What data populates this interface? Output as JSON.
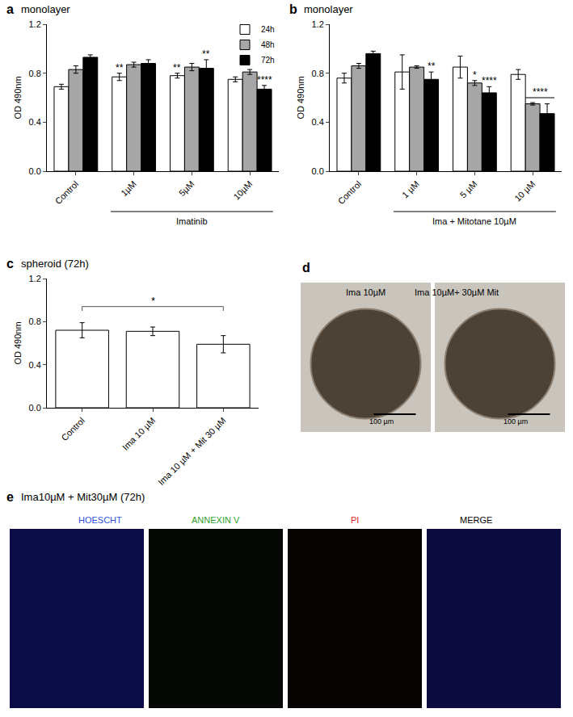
{
  "chart_data": [
    {
      "panel": "a",
      "type": "bar",
      "title": "monolayer",
      "categories": [
        "Control",
        "1µM",
        "5µM",
        "10µM"
      ],
      "group": {
        "label": "Imatinib",
        "categories": [
          "1µM",
          "5µM",
          "10µM"
        ]
      },
      "y_label": "OD 490nm",
      "ylim": [
        0,
        1.2
      ],
      "yticks": [
        {
          "value": 0,
          "label": "0.0"
        },
        0.4,
        0.8,
        1.2
      ],
      "series": [
        {
          "name": "24h",
          "color": "#ffffff",
          "values": [
            0.69,
            0.77,
            0.78,
            0.75
          ],
          "errors": [
            0.02,
            0.03,
            0.02,
            0.02
          ]
        },
        {
          "name": "48h",
          "color": "#a6a6a6",
          "values": [
            0.83,
            0.87,
            0.85,
            0.81
          ],
          "errors": [
            0.03,
            0.02,
            0.03,
            0.02
          ]
        },
        {
          "name": "72h",
          "color": "#000000",
          "values": [
            0.93,
            0.88,
            0.84,
            0.67
          ],
          "errors": [
            0.02,
            0.03,
            0.07,
            0.03
          ]
        }
      ],
      "significance": [
        {
          "category": "1µM",
          "series": [
            "24h"
          ],
          "text": "**"
        },
        {
          "category": "5µM",
          "series": [
            "24h"
          ],
          "text": "**"
        },
        {
          "category": "5µM",
          "series": [
            "72h"
          ],
          "text": "**"
        },
        {
          "category": "10µM",
          "series": [
            "72h"
          ],
          "text": "****"
        }
      ],
      "legend": "top right",
      "grid": false
    },
    {
      "panel": "b",
      "type": "bar",
      "title": "monolayer",
      "categories": [
        "Control",
        "1 µM",
        "5 µM",
        "10 µM"
      ],
      "group": {
        "label": "Ima + Mitotane 10µM",
        "categories": [
          "1 µM",
          "5 µM",
          "10 µM"
        ]
      },
      "y_label": "OD 490nm",
      "ylim": [
        0,
        1.2
      ],
      "yticks": [
        {
          "value": 0,
          "label": "0.0"
        },
        0.4,
        0.8,
        1.2
      ],
      "series": [
        {
          "name": "24h",
          "color": "#ffffff",
          "values": [
            0.76,
            0.81,
            0.85,
            0.79
          ],
          "errors": [
            0.04,
            0.14,
            0.09,
            0.04
          ]
        },
        {
          "name": "48h",
          "color": "#a6a6a6",
          "values": [
            0.86,
            0.85,
            0.72,
            0.55
          ],
          "errors": [
            0.02,
            0.01,
            0.02,
            0.01
          ]
        },
        {
          "name": "72h",
          "color": "#000000",
          "values": [
            0.96,
            0.75,
            0.64,
            0.47
          ],
          "errors": [
            0.02,
            0.06,
            0.05,
            0.08
          ]
        }
      ],
      "significance": [
        {
          "category": "1 µM",
          "series": [
            "72h"
          ],
          "text": "**"
        },
        {
          "category": "5 µM",
          "series": [
            "48h"
          ],
          "text": "*"
        },
        {
          "category": "5 µM",
          "series": [
            "72h"
          ],
          "text": "****"
        },
        {
          "category": "10 µM",
          "series": [
            "48h",
            "72h"
          ],
          "text": "****"
        }
      ],
      "grid": false
    },
    {
      "panel": "c",
      "type": "bar",
      "title": "spheroid (72h)",
      "categories": [
        "Control",
        "Ima 10 µM",
        "Ima 10 µM + Mit 30 µM"
      ],
      "values": [
        0.72,
        0.71,
        0.59
      ],
      "errors": [
        0.07,
        0.04,
        0.08
      ],
      "color": "#ffffff",
      "comparison": {
        "from": "Control",
        "to": "Ima 10 µM + Mit 30 µM",
        "text": "*"
      },
      "y_label": "OD 490nm",
      "ylim": [
        0,
        1.2
      ],
      "yticks": [
        {
          "value": 0,
          "label": "0.0"
        },
        0.4,
        0.8,
        1.2
      ],
      "grid": false
    }
  ],
  "images": [
    {
      "panel": "d",
      "items": [
        {
          "label": "Ima 10µM",
          "scale_bar": "100 µm"
        },
        {
          "label": "Ima 10µM+ 30µM Mit",
          "scale_bar": "100 µm"
        }
      ]
    },
    {
      "panel": "e",
      "title": "Ima10µM + Mit30µM (72h)",
      "channels": [
        {
          "label": "HOESCHT",
          "color": "#2f4fd8"
        },
        {
          "label": "ANNEXIN V",
          "color": "#2fa02f"
        },
        {
          "label": "PI",
          "color": "#e02020"
        },
        {
          "label": "MERGE",
          "color": "#000000"
        }
      ]
    }
  ]
}
